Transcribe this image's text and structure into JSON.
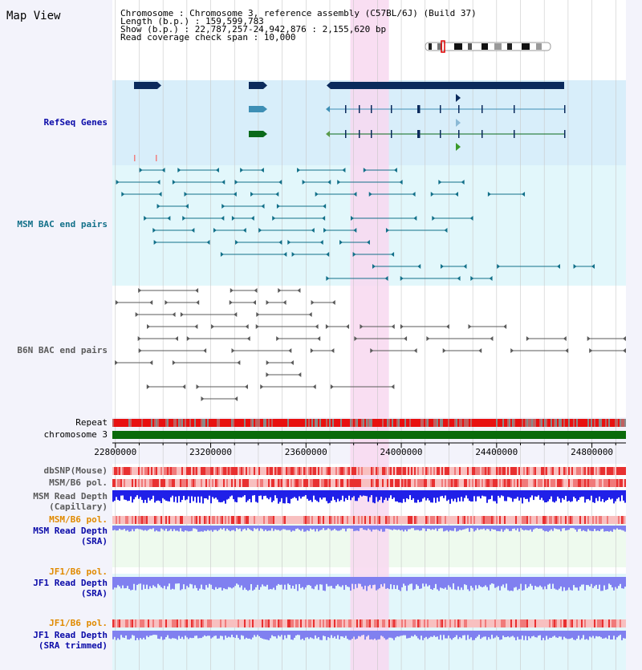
{
  "header": {
    "title": "Map View",
    "info_lines": [
      "Chromosome     : Chromosome 3, reference assembly (C57BL/6J) (Build 37)",
      "  Length (b.p.) : 159,599,783",
      "   Show (b.p.) : 22,787,257-24,942,876 : 2,155,620 bp",
      "Read coverage check span : 10,000"
    ]
  },
  "tracks": {
    "refseq": "RefSeq Genes",
    "msm_bac": "MSM BAC end pairs",
    "b6n_bac": "B6N BAC end pairs",
    "repeat": "Repeat",
    "chromosome": "chromosome 3",
    "dbsnp": "dbSNP(Mouse)",
    "msm_b6_pol": "MSM/B6 pol.",
    "msm_depth_cap_1": "MSM Read Depth",
    "msm_depth_cap_2": "(Capillary)",
    "msm_b6_pol_sra": "MSM/B6 pol.",
    "msm_depth_sra_1": "MSM Read Depth",
    "msm_depth_sra_2": "(SRA)",
    "jf1_pol_1": "JF1/B6 pol.",
    "jf1_depth_1": "JF1 Read Depth",
    "jf1_depth_1b": "(SRA)",
    "jf1_pol_2": "JF1/B6 pol.",
    "jf1_depth_2": "JF1 Read Depth",
    "jf1_depth_2b": "(SRA trimmed)"
  },
  "axis": {
    "ticks": [
      {
        "value": 22800000,
        "label": "22800000"
      },
      {
        "value": 23200000,
        "label": "23200000"
      },
      {
        "value": 23600000,
        "label": "23600000"
      },
      {
        "value": 24000000,
        "label": "24000000"
      },
      {
        "value": 24400000,
        "label": "24400000"
      },
      {
        "value": 24800000,
        "label": "24800000"
      }
    ],
    "start": 22787257,
    "end": 24942876,
    "highlight_start": 23786000,
    "highlight_end": 23948000
  },
  "colors": {
    "refseq_bg": "#d8eefa",
    "msm_bg": "#e2f7fb",
    "highlight": "#f8d8f0",
    "gene_dark": "#0b2a5c",
    "gene_teal": "#3e8fb5",
    "gene_green": "#0a6a1a",
    "bac_msm": "#127089",
    "bac_b6n": "#5a5a5a",
    "chrom": "#0a6a0a",
    "depth_blue": "#2020e8",
    "depth_light": "#8080f0",
    "sra_bg": "#eefaee",
    "jf1_bg": "#e2f7fb"
  }
}
